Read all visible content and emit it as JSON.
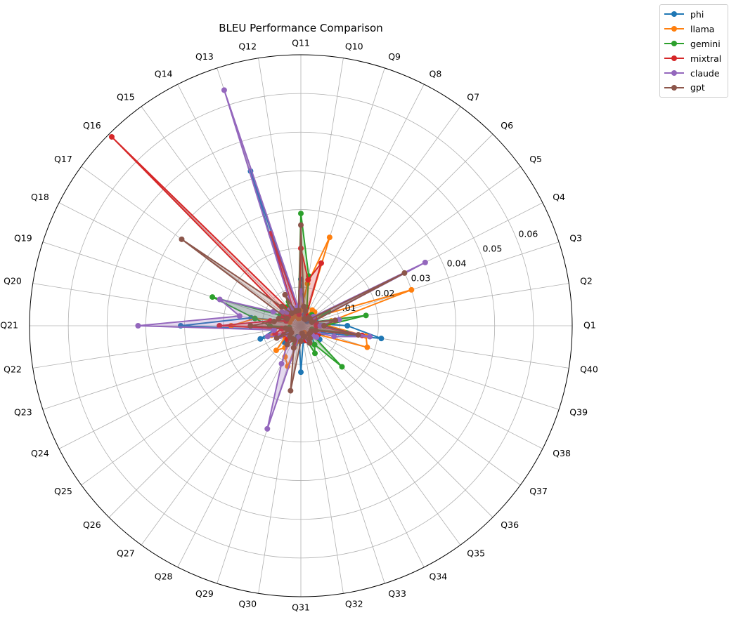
{
  "chart_data": {
    "type": "radar",
    "title": "BLEU Performance Comparison",
    "categories": [
      "Q1",
      "Q2",
      "Q3",
      "Q4",
      "Q5",
      "Q6",
      "Q7",
      "Q8",
      "Q9",
      "Q10",
      "Q11",
      "Q12",
      "Q13",
      "Q14",
      "Q15",
      "Q16",
      "Q17",
      "Q18",
      "Q19",
      "Q20",
      "Q21",
      "Q22",
      "Q23",
      "Q24",
      "Q25",
      "Q26",
      "Q27",
      "Q28",
      "Q29",
      "Q30",
      "Q31",
      "Q32",
      "Q33",
      "Q34",
      "Q35",
      "Q36",
      "Q37",
      "Q38",
      "Q39",
      "Q40"
    ],
    "rlim": [
      0,
      0.07
    ],
    "r_ticks": [
      0.01,
      0.02,
      0.03,
      0.04,
      0.05,
      0.06
    ],
    "r_tick_labels": [
      ".01",
      "0.02",
      "0.03",
      "0.04",
      "0.05",
      "0.06"
    ],
    "grid": true,
    "legend_position": "upper-right-outside",
    "series": [
      {
        "name": "phi",
        "color": "#1f77b4",
        "fill": false,
        "values": [
          0.012,
          0.004,
          0.004,
          0.004,
          0.002,
          0.002,
          0.002,
          0.002,
          0.003,
          0.005,
          0.012,
          0.004,
          0.042,
          0.005,
          0.006,
          0.004,
          0.003,
          0.004,
          0.004,
          0.013,
          0.031,
          0.007,
          0.011,
          0.005,
          0.005,
          0.006,
          0.004,
          0.004,
          0.003,
          0.003,
          0.012,
          0.004,
          0.004,
          0.005,
          0.006,
          0.004,
          0.006,
          0.005,
          0.006,
          0.021
        ]
      },
      {
        "name": "llama",
        "color": "#ff7f0e",
        "fill": false,
        "values": [
          0.007,
          0.008,
          0.03,
          0.006,
          0.004,
          0.005,
          0.005,
          0.003,
          0.024,
          0.011,
          0.004,
          0.002,
          0.002,
          0.004,
          0.003,
          0.004,
          0.003,
          0.004,
          0.003,
          0.012,
          0.018,
          0.005,
          0.008,
          0.004,
          0.005,
          0.009,
          0.007,
          0.009,
          0.011,
          0.004,
          0.003,
          0.003,
          0.003,
          0.002,
          0.003,
          0.003,
          0.003,
          0.005,
          0.018,
          0.017
        ]
      },
      {
        "name": "gemini",
        "color": "#2ca02c",
        "fill": true,
        "values": [
          0.006,
          0.017,
          0.003,
          0.008,
          0.004,
          0.004,
          0.003,
          0.002,
          0.005,
          0.013,
          0.029,
          0.004,
          0.004,
          0.007,
          0.006,
          0.005,
          0.006,
          0.006,
          0.024,
          0.012,
          0.008,
          0.003,
          0.003,
          0.005,
          0.004,
          0.004,
          0.004,
          0.004,
          0.005,
          0.003,
          0.003,
          0.003,
          0.003,
          0.008,
          0.006,
          0.015,
          0.003,
          0.005,
          0.003,
          0.012
        ]
      },
      {
        "name": "mixtral",
        "color": "#d62728",
        "fill": true,
        "values": [
          0.004,
          0.004,
          0.003,
          0.004,
          0.004,
          0.003,
          0.002,
          0.003,
          0.017,
          0.012,
          0.02,
          0.003,
          0.025,
          0.004,
          0.005,
          0.069,
          0.004,
          0.005,
          0.004,
          0.008,
          0.021,
          0.005,
          0.007,
          0.005,
          0.003,
          0.005,
          0.006,
          0.004,
          0.006,
          0.003,
          0.003,
          0.002,
          0.004,
          0.004,
          0.004,
          0.003,
          0.003,
          0.005,
          0.004,
          0.016
        ]
      },
      {
        "name": "claude",
        "color": "#9467bd",
        "fill": true,
        "values": [
          0.005,
          0.01,
          0.003,
          0.036,
          0.004,
          0.003,
          0.002,
          0.002,
          0.004,
          0.005,
          0.009,
          0.005,
          0.064,
          0.005,
          0.005,
          0.005,
          0.006,
          0.008,
          0.022,
          0.016,
          0.042,
          0.007,
          0.009,
          0.006,
          0.004,
          0.004,
          0.006,
          0.011,
          0.028,
          0.003,
          0.003,
          0.002,
          0.003,
          0.004,
          0.004,
          0.004,
          0.005,
          0.003,
          0.009,
          0.018
        ]
      },
      {
        "name": "gpt",
        "color": "#8c564b",
        "fill": true,
        "values": [
          0.006,
          0.009,
          0.003,
          0.03,
          0.003,
          0.003,
          0.002,
          0.002,
          0.004,
          0.005,
          0.026,
          0.004,
          0.004,
          0.009,
          0.004,
          0.007,
          0.038,
          0.004,
          0.006,
          0.007,
          0.013,
          0.004,
          0.003,
          0.007,
          0.003,
          0.004,
          0.006,
          0.004,
          0.006,
          0.017,
          0.004,
          0.002,
          0.003,
          0.005,
          0.004,
          0.003,
          0.003,
          0.003,
          0.004,
          0.015
        ]
      }
    ]
  }
}
